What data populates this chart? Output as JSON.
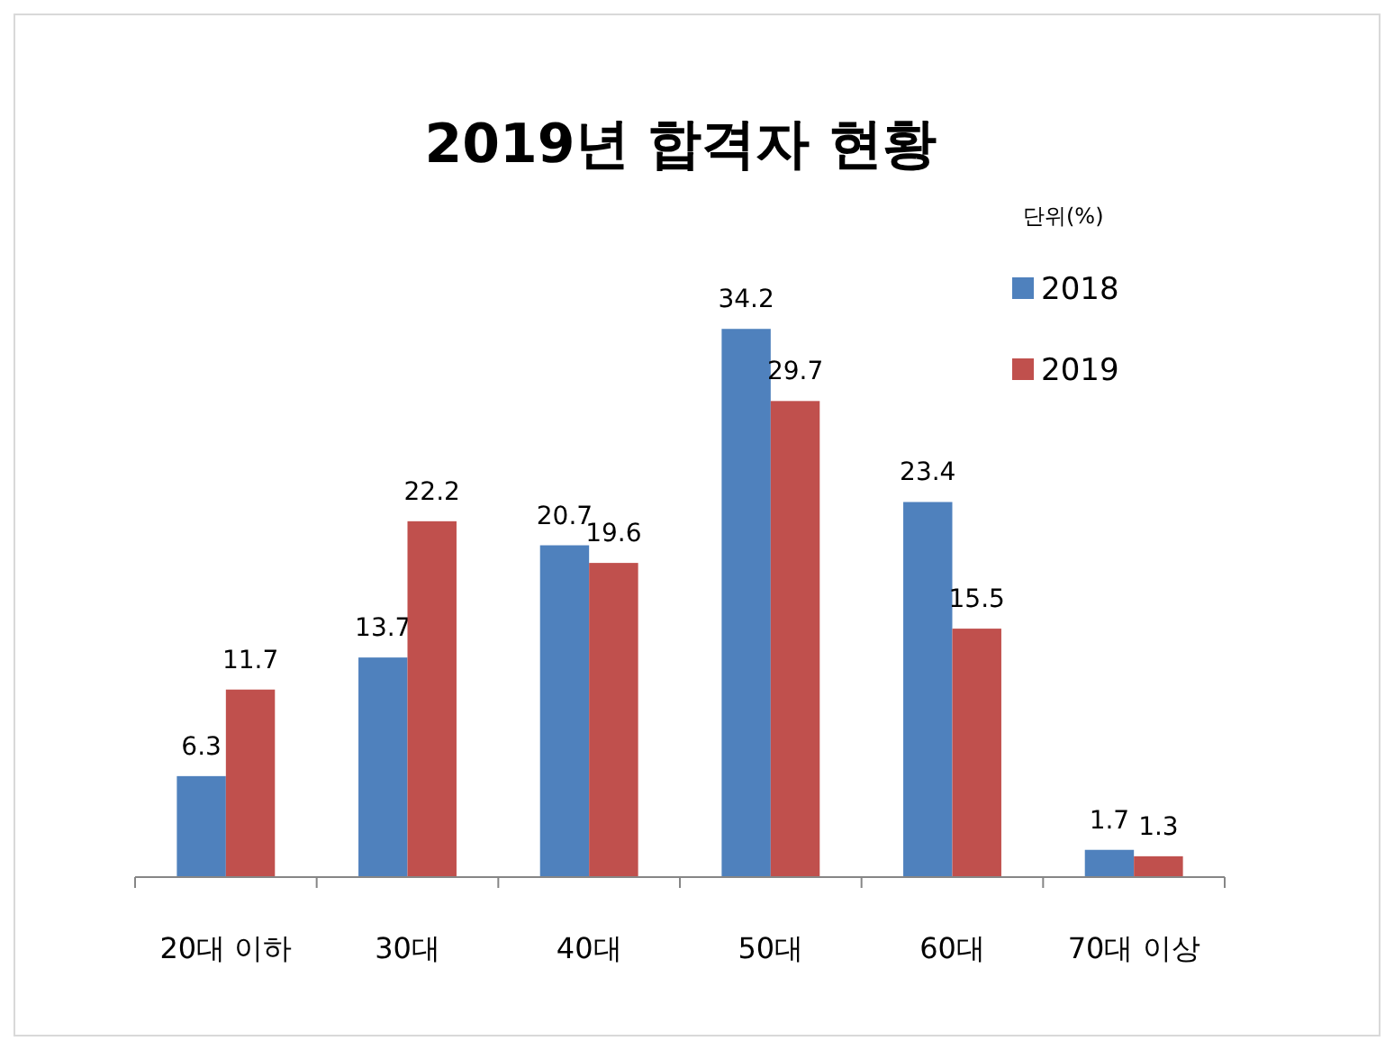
{
  "chart_data": {
    "type": "bar",
    "title": "2019년 합격자 현황",
    "annotations": [
      "단위(%)"
    ],
    "categories": [
      "20대 이하",
      "30대",
      "40대",
      "50대",
      "60대",
      "70대 이상"
    ],
    "series": [
      {
        "name": "2018",
        "color": "#4f81bd",
        "values": [
          6.3,
          13.7,
          20.7,
          34.2,
          23.4,
          1.7
        ]
      },
      {
        "name": "2019",
        "color": "#c0504d",
        "values": [
          11.7,
          22.2,
          19.6,
          29.7,
          15.5,
          1.3
        ]
      }
    ],
    "data_labels": true,
    "legend": "top right"
  }
}
